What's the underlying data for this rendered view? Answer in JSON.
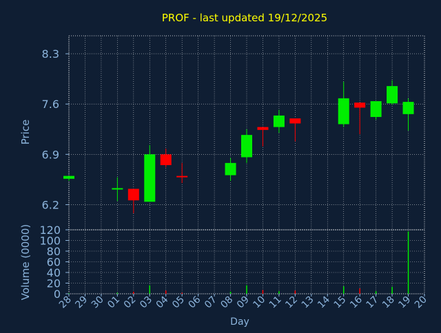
{
  "title": "PROF - last updated 19/12/2025",
  "colors": {
    "background": "#0f1e33",
    "plot_border": "#ffffff",
    "grid": "#ffffff",
    "title": "#ffff00",
    "axis_text": "#8cb4dc",
    "up": "#00ee00",
    "down": "#ff0000"
  },
  "chart_data": [
    {
      "type": "candlestick",
      "ylabel": "Price",
      "ylim": [
        5.85,
        8.55
      ],
      "yticks": [
        6.2,
        6.9,
        7.6,
        8.3
      ],
      "yticklabels": [
        "6.2",
        "6.9",
        "7.6",
        "8.3"
      ],
      "grid": true,
      "categories": [
        "28",
        "29",
        "30",
        "01",
        "02",
        "03",
        "04",
        "05",
        "06",
        "07",
        "08",
        "09",
        "10",
        "11",
        "12",
        "13",
        "14",
        "15",
        "16",
        "17",
        "18",
        "19",
        "20"
      ],
      "candles": [
        {
          "x": "28",
          "open": 6.56,
          "high": 6.6,
          "low": 6.53,
          "close": 6.6,
          "dir": "up"
        },
        {
          "x": "01",
          "open": 6.42,
          "high": 6.58,
          "low": 6.25,
          "close": 6.42,
          "dir": "up"
        },
        {
          "x": "02",
          "open": 6.42,
          "high": 6.42,
          "low": 6.08,
          "close": 6.26,
          "dir": "down"
        },
        {
          "x": "03",
          "open": 6.24,
          "high": 7.03,
          "low": 6.24,
          "close": 6.9,
          "dir": "up"
        },
        {
          "x": "04",
          "open": 6.9,
          "high": 6.98,
          "low": 6.72,
          "close": 6.75,
          "dir": "down"
        },
        {
          "x": "05",
          "open": 6.59,
          "high": 6.78,
          "low": 6.5,
          "close": 6.59,
          "dir": "down"
        },
        {
          "x": "08",
          "open": 6.61,
          "high": 6.85,
          "low": 6.53,
          "close": 6.78,
          "dir": "up"
        },
        {
          "x": "09",
          "open": 6.86,
          "high": 7.25,
          "low": 6.78,
          "close": 7.17,
          "dir": "up"
        },
        {
          "x": "10",
          "open": 7.28,
          "high": 7.28,
          "low": 7.01,
          "close": 7.24,
          "dir": "down"
        },
        {
          "x": "11",
          "open": 7.28,
          "high": 7.52,
          "low": 7.2,
          "close": 7.44,
          "dir": "up"
        },
        {
          "x": "12",
          "open": 7.4,
          "high": 7.4,
          "low": 7.08,
          "close": 7.33,
          "dir": "down"
        },
        {
          "x": "15",
          "open": 7.32,
          "high": 7.91,
          "low": 7.28,
          "close": 7.68,
          "dir": "up"
        },
        {
          "x": "16",
          "open": 7.62,
          "high": 7.62,
          "low": 7.18,
          "close": 7.55,
          "dir": "down"
        },
        {
          "x": "17",
          "open": 7.42,
          "high": 7.64,
          "low": 7.38,
          "close": 7.64,
          "dir": "up"
        },
        {
          "x": "18",
          "open": 7.61,
          "high": 7.93,
          "low": 7.59,
          "close": 7.85,
          "dir": "up"
        },
        {
          "x": "19",
          "open": 7.46,
          "high": 7.68,
          "low": 7.23,
          "close": 7.63,
          "dir": "up"
        }
      ]
    },
    {
      "type": "bar",
      "ylabel": "Volume (0000)",
      "xlabel": "Day",
      "ylim": [
        0,
        120
      ],
      "yticks": [
        0,
        20,
        40,
        60,
        80,
        100,
        120
      ],
      "yticklabels": [
        "0",
        "20",
        "40",
        "60",
        "80",
        "100",
        "120"
      ],
      "grid": true,
      "categories": [
        "28",
        "29",
        "30",
        "01",
        "02",
        "03",
        "04",
        "05",
        "06",
        "07",
        "08",
        "09",
        "10",
        "11",
        "12",
        "13",
        "14",
        "15",
        "16",
        "17",
        "18",
        "19",
        "20"
      ],
      "bars": [
        {
          "x": "28",
          "value": 1,
          "dir": "up"
        },
        {
          "x": "01",
          "value": 2,
          "dir": "up"
        },
        {
          "x": "02",
          "value": 4,
          "dir": "down"
        },
        {
          "x": "03",
          "value": 16,
          "dir": "up"
        },
        {
          "x": "04",
          "value": 6,
          "dir": "down"
        },
        {
          "x": "05",
          "value": 2,
          "dir": "down"
        },
        {
          "x": "08",
          "value": 4,
          "dir": "up"
        },
        {
          "x": "09",
          "value": 16,
          "dir": "up"
        },
        {
          "x": "10",
          "value": 7,
          "dir": "down"
        },
        {
          "x": "11",
          "value": 5,
          "dir": "up"
        },
        {
          "x": "12",
          "value": 6,
          "dir": "down"
        },
        {
          "x": "15",
          "value": 14,
          "dir": "up"
        },
        {
          "x": "16",
          "value": 10,
          "dir": "down"
        },
        {
          "x": "17",
          "value": 5,
          "dir": "up"
        },
        {
          "x": "18",
          "value": 13,
          "dir": "up"
        },
        {
          "x": "19",
          "value": 117,
          "dir": "up"
        }
      ]
    }
  ]
}
